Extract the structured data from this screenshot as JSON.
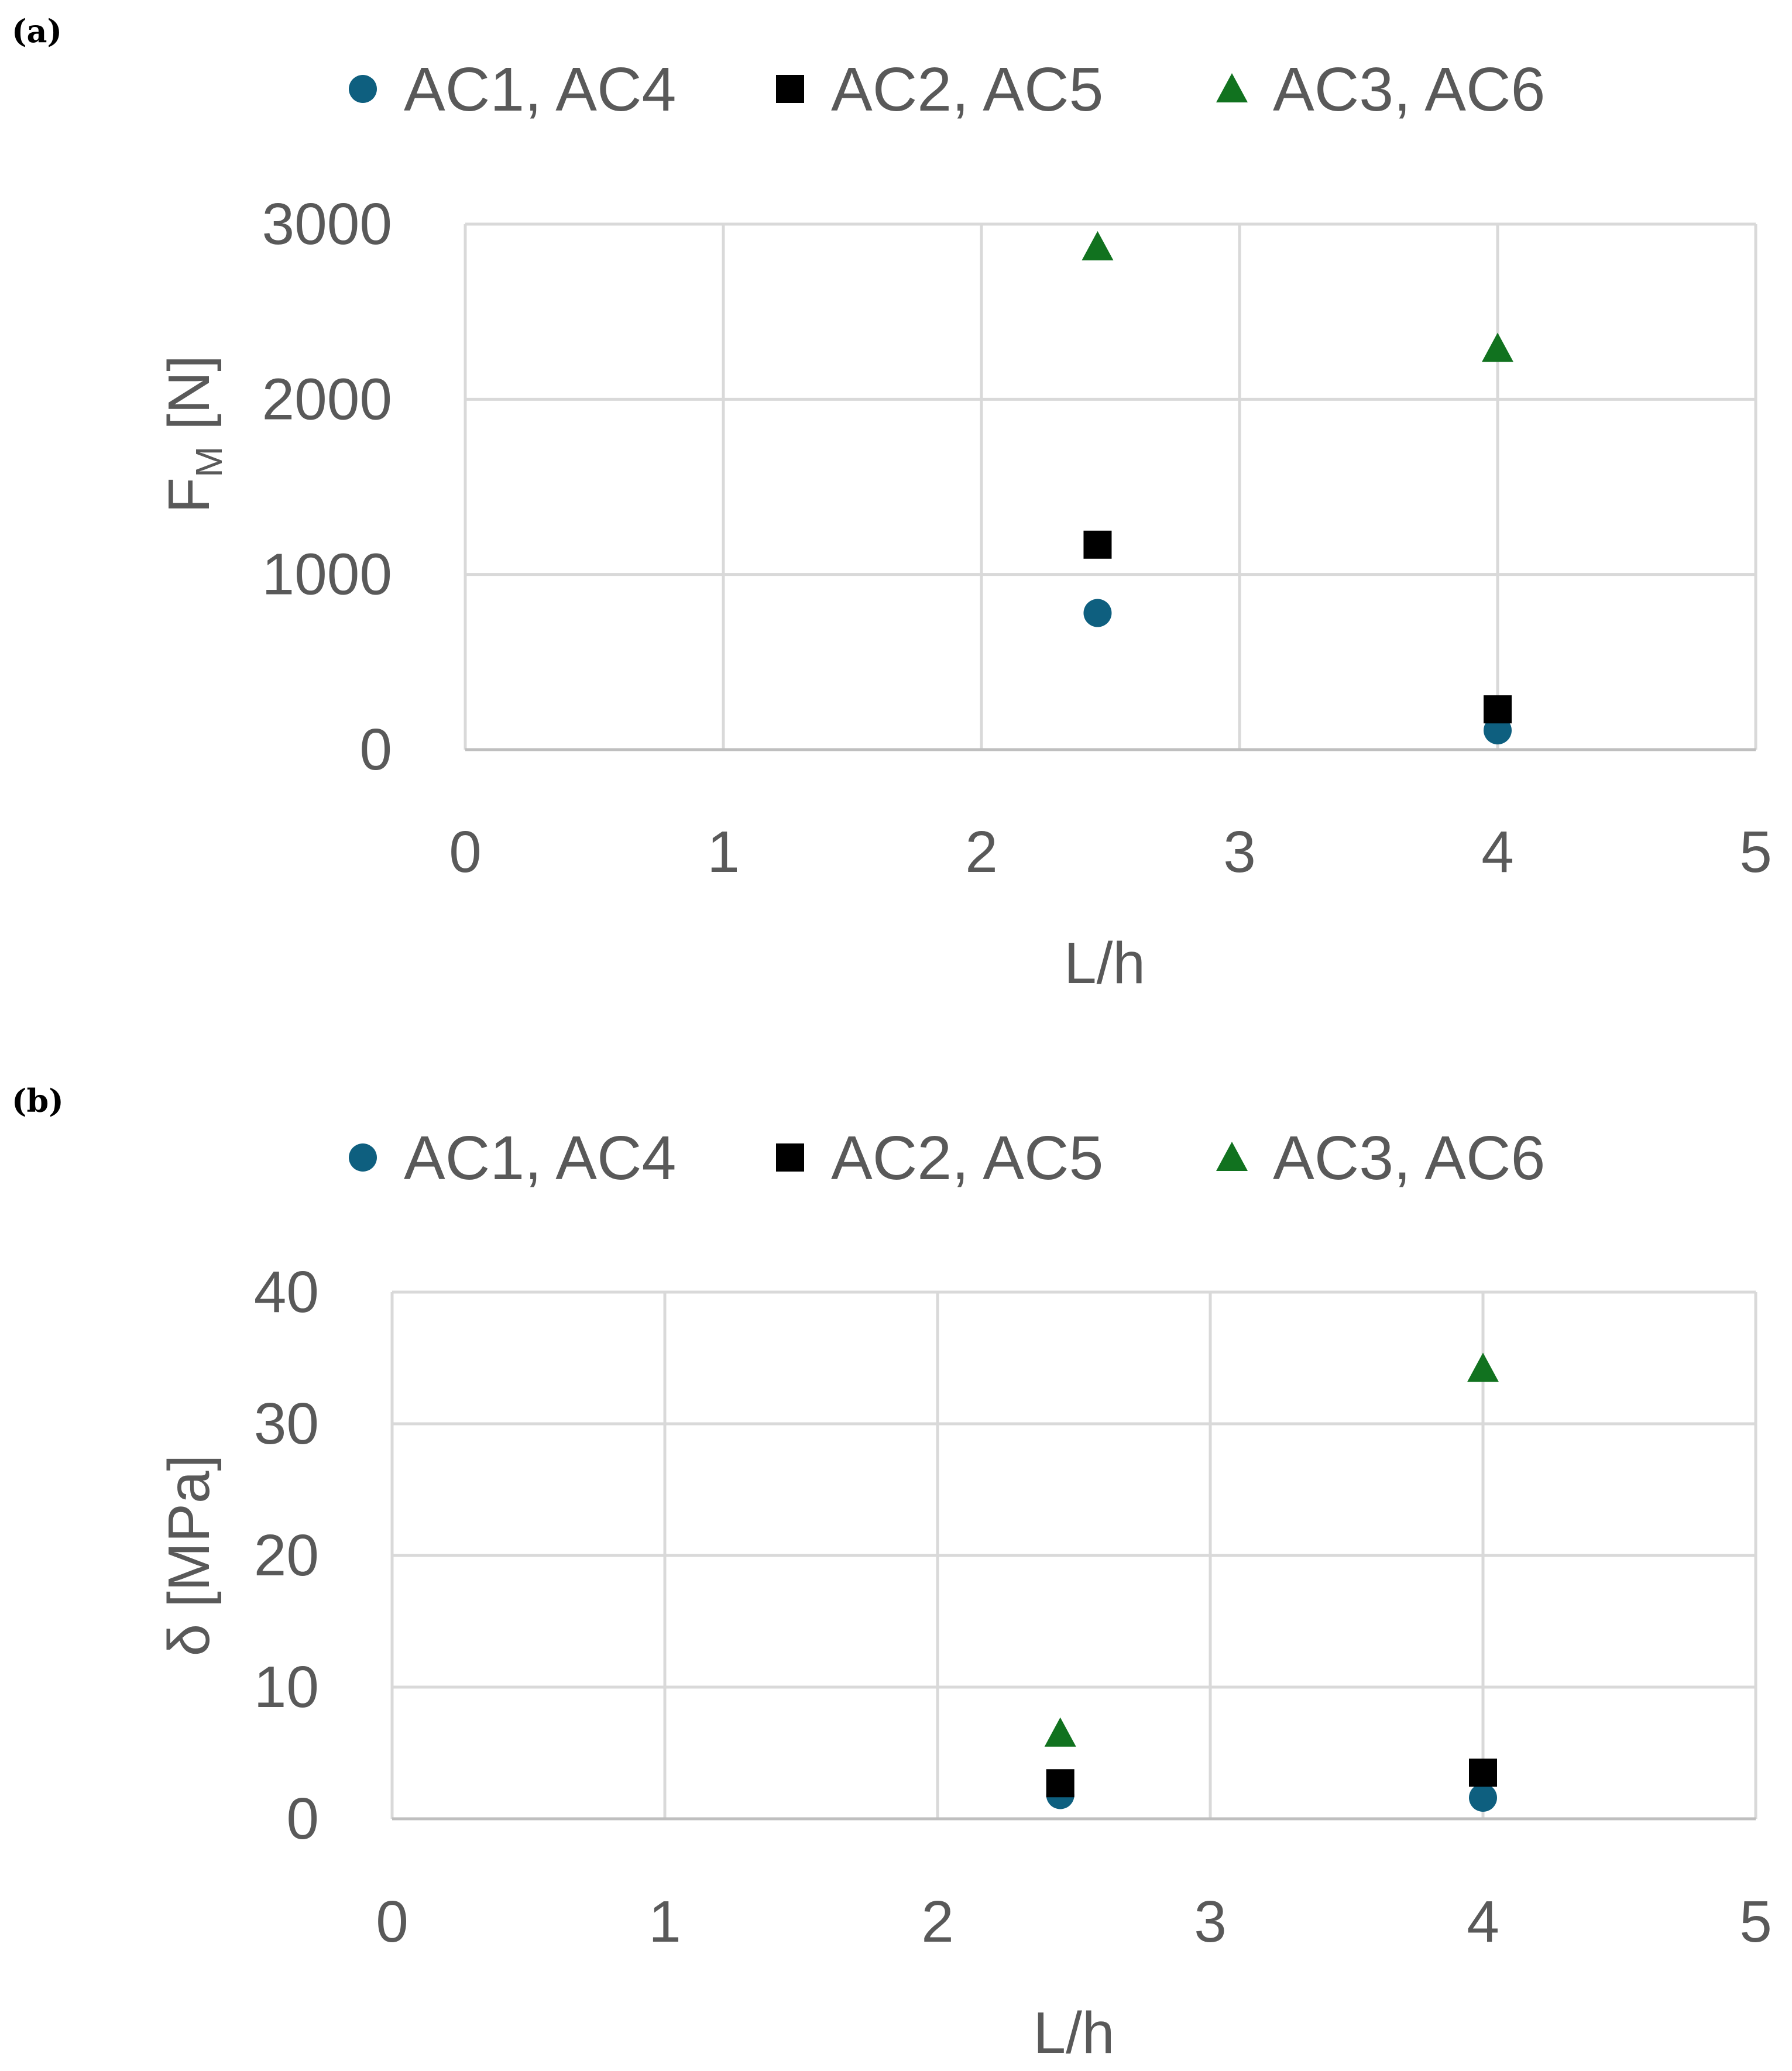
{
  "chart_data": [
    {
      "type": "scatter",
      "panel_label": "(a)",
      "xlabel": "L/h",
      "ylabel_main": "F",
      "ylabel_sub": "M",
      "ylabel_unit": " [N]",
      "xlim": [
        0,
        5
      ],
      "ylim": [
        0,
        3000
      ],
      "x_ticks": [
        0,
        1,
        2,
        3,
        4,
        5
      ],
      "y_ticks": [
        0,
        1000,
        2000,
        3000
      ],
      "x_tick_labels": [
        "0",
        "1",
        "2",
        "3",
        "4",
        "5"
      ],
      "y_tick_labels": [
        "0",
        "1000",
        "2000",
        "3000"
      ],
      "grid": true,
      "legend_position": "top",
      "series": [
        {
          "name": "AC1, AC4",
          "marker": "circle",
          "color": "#0e5f7f",
          "points": [
            [
              2.45,
              780
            ],
            [
              4.0,
              110
            ]
          ]
        },
        {
          "name": "AC2, AC5",
          "marker": "square",
          "color": "#000000",
          "points": [
            [
              2.45,
              1170
            ],
            [
              4.0,
              230
            ]
          ]
        },
        {
          "name": "AC3, AC6",
          "marker": "triangle",
          "color": "#11721f",
          "points": [
            [
              2.45,
              2870
            ],
            [
              4.0,
              2290
            ]
          ]
        }
      ]
    },
    {
      "type": "scatter",
      "panel_label": "(b)",
      "xlabel": "L/h",
      "ylabel_main": "δ [MPa]",
      "ylabel_sub": "",
      "ylabel_unit": "",
      "xlim": [
        0,
        5
      ],
      "ylim": [
        0,
        40
      ],
      "x_ticks": [
        0,
        1,
        2,
        3,
        4,
        5
      ],
      "y_ticks": [
        0,
        10,
        20,
        30,
        40
      ],
      "x_tick_labels": [
        "0",
        "1",
        "2",
        "3",
        "4",
        "5"
      ],
      "y_tick_labels": [
        "0",
        "10",
        "20",
        "30",
        "40"
      ],
      "grid": true,
      "legend_position": "top",
      "series": [
        {
          "name": "AC1, AC4",
          "marker": "circle",
          "color": "#0e5f7f",
          "points": [
            [
              2.45,
              1.8
            ],
            [
              4.0,
              1.6
            ]
          ]
        },
        {
          "name": "AC2, AC5",
          "marker": "square",
          "color": "#000000",
          "points": [
            [
              2.45,
              2.7
            ],
            [
              4.0,
              3.5
            ]
          ]
        },
        {
          "name": "AC3, AC6",
          "marker": "triangle",
          "color": "#11721f",
          "points": [
            [
              2.45,
              6.5
            ],
            [
              4.0,
              34.2
            ]
          ]
        }
      ]
    }
  ]
}
